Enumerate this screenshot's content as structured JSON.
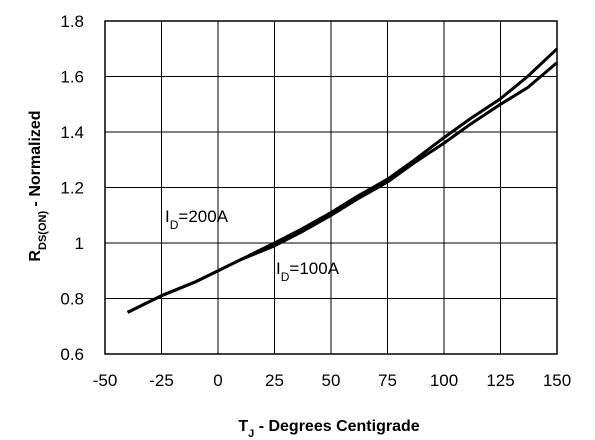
{
  "chart_data": {
    "type": "line",
    "title": "",
    "xlabel": {
      "main": "T",
      "sub": "J",
      "rest": " - Degrees Centigrade"
    },
    "ylabel": {
      "main": "R",
      "sub": "DS(ON)",
      "rest": " - Normalized"
    },
    "xlim": [
      -50,
      150
    ],
    "ylim": [
      0.6,
      1.8
    ],
    "xticks": [
      -50,
      -25,
      0,
      25,
      50,
      75,
      100,
      125,
      150
    ],
    "yticks": [
      0.6,
      0.8,
      1.0,
      1.2,
      1.4,
      1.6,
      1.8
    ],
    "xtick_labels": [
      "-50",
      "-25",
      "0",
      "25",
      "50",
      "75",
      "100",
      "125",
      "150"
    ],
    "ytick_labels": [
      "0.6",
      "0.8",
      "1",
      "1.2",
      "1.4",
      "1.6",
      "1.8"
    ],
    "grid": true,
    "legend": "none",
    "line_color": "#000000",
    "series": [
      {
        "x": [
          -40,
          -25,
          -10,
          0,
          10,
          25,
          37,
          50,
          62,
          75,
          87,
          100,
          112,
          125,
          137,
          150
        ],
        "y": [
          0.75,
          0.81,
          0.86,
          0.9,
          0.94,
          1.0,
          1.05,
          1.11,
          1.17,
          1.23,
          1.3,
          1.38,
          1.45,
          1.52,
          1.6,
          1.7
        ]
      },
      {
        "x": [
          -40,
          -25,
          -10,
          0,
          10,
          25,
          37,
          50,
          62,
          75,
          87,
          100,
          112,
          125,
          137,
          150
        ],
        "y": [
          0.75,
          0.81,
          0.86,
          0.9,
          0.94,
          0.99,
          1.04,
          1.1,
          1.16,
          1.22,
          1.29,
          1.36,
          1.43,
          1.5,
          1.56,
          1.65
        ]
      }
    ],
    "annotations": [
      {
        "main": "I",
        "sub": "D",
        "rest": "=200A"
      },
      {
        "main": "I",
        "sub": "D",
        "rest": "=100A"
      }
    ]
  }
}
